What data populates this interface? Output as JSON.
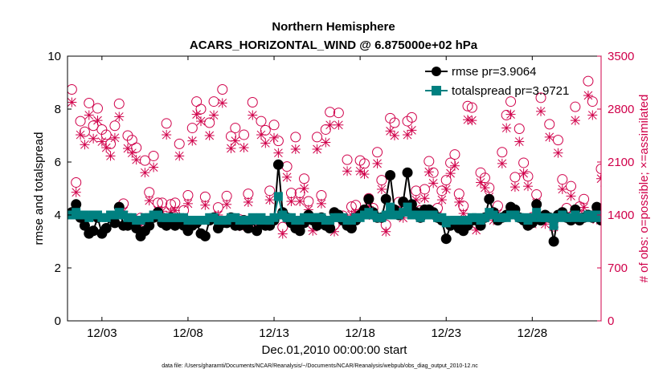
{
  "chart_data": {
    "type": "line",
    "title": "Northern Hemisphere",
    "subtitle": "ACARS_HORIZONTAL_WIND @ 6.875000e+02 hPa",
    "xlabel": "Dec.01,2010 00:00:00 start",
    "ylabel_left": "rmse and totalspread",
    "ylabel_right": "# of obs: o=possible; ×=assimilated",
    "footnote": "data file: /Users/gharamti/Documents/NCAR/Reanalysis/~/Documents/NCAR/Reanalysis/webpub/obs_diag_output_2010-12.nc",
    "xlim": [
      1.0,
      32.0
    ],
    "ylim_left": [
      0,
      10
    ],
    "ylim_right": [
      0,
      3500
    ],
    "x_ticks": [
      3,
      8,
      13,
      18,
      23,
      28
    ],
    "x_tick_labels": [
      "12/03",
      "12/08",
      "12/13",
      "12/18",
      "12/23",
      "12/28"
    ],
    "y_left_ticks": [
      0,
      2,
      4,
      6,
      8,
      10
    ],
    "y_left_tick_labels": [
      "0",
      "2",
      "4",
      "6",
      "8",
      "10"
    ],
    "y_right_ticks": [
      0,
      700,
      1400,
      2100,
      2800,
      3500
    ],
    "y_right_tick_labels": [
      "0",
      "700",
      "1400",
      "2100",
      "2800",
      "3500"
    ],
    "x_start": 1.25,
    "x_step": 0.25,
    "series": [
      {
        "name": "rmse pr=3.9064",
        "axis": "left",
        "color": "#000000",
        "marker": "circle",
        "values": [
          4.1,
          4.4,
          3.9,
          3.6,
          3.3,
          3.4,
          3.9,
          3.3,
          3.5,
          3.9,
          3.7,
          4.3,
          3.6,
          3.6,
          3.8,
          3.5,
          3.2,
          3.4,
          3.6,
          3.9,
          4.1,
          3.7,
          3.6,
          3.9,
          3.6,
          3.8,
          3.6,
          3.4,
          3.6,
          3.7,
          3.3,
          3.2,
          3.8,
          3.9,
          3.5,
          3.7,
          3.7,
          3.9,
          3.6,
          3.6,
          3.8,
          3.5,
          3.8,
          3.4,
          3.7,
          3.6,
          3.6,
          3.8,
          5.9,
          4.1,
          3.9,
          3.7,
          3.5,
          3.4,
          3.7,
          4.0,
          3.8,
          3.6,
          3.9,
          3.6,
          3.5,
          4.1,
          4.0,
          3.8,
          3.6,
          3.5,
          3.8,
          4.0,
          4.2,
          4.6,
          4.1,
          3.9,
          3.9,
          4.6,
          5.5,
          4.2,
          4.0,
          4.5,
          5.6,
          4.4,
          4.1,
          3.9,
          4.2,
          4.2,
          4.1,
          3.9,
          3.8,
          3.1,
          3.6,
          3.7,
          3.5,
          3.4,
          3.6,
          3.8,
          3.8,
          3.6,
          3.9,
          4.6,
          4.1,
          3.8,
          3.9,
          4.0,
          4.3,
          4.2,
          3.9,
          3.8,
          3.6,
          3.7,
          4.4,
          3.8,
          4.0,
          3.9,
          3.0,
          4.0,
          4.1,
          3.9,
          3.8,
          4.2,
          3.8,
          3.9,
          4.0,
          3.9,
          4.3,
          3.8
        ]
      },
      {
        "name": "totalspread pr=3.9721",
        "axis": "left",
        "color": "#008080",
        "marker": "square",
        "values": [
          4.0,
          4.1,
          4.0,
          4.0,
          3.9,
          4.0,
          4.0,
          3.9,
          3.9,
          4.0,
          4.0,
          4.1,
          4.0,
          3.9,
          3.9,
          3.8,
          3.8,
          3.9,
          3.9,
          4.0,
          4.0,
          3.9,
          3.9,
          3.9,
          3.9,
          3.9,
          3.9,
          3.8,
          3.8,
          3.8,
          3.8,
          3.8,
          3.9,
          3.9,
          3.8,
          3.8,
          3.8,
          3.9,
          3.9,
          3.8,
          3.8,
          3.8,
          3.9,
          3.8,
          3.9,
          3.8,
          3.8,
          3.9,
          4.7,
          4.0,
          3.9,
          3.9,
          3.8,
          3.8,
          3.9,
          3.9,
          3.9,
          3.9,
          3.9,
          3.8,
          3.8,
          3.9,
          3.9,
          3.9,
          3.8,
          3.8,
          3.9,
          3.9,
          4.0,
          4.1,
          4.0,
          3.9,
          3.9,
          4.0,
          4.3,
          4.0,
          4.0,
          4.1,
          4.3,
          4.0,
          4.0,
          3.9,
          4.0,
          4.0,
          4.0,
          3.9,
          3.9,
          3.7,
          3.8,
          3.8,
          3.8,
          3.8,
          3.8,
          3.9,
          3.9,
          3.8,
          3.9,
          4.1,
          4.0,
          3.9,
          3.9,
          3.9,
          4.0,
          4.0,
          3.9,
          3.9,
          3.8,
          3.9,
          4.1,
          3.9,
          3.9,
          3.9,
          3.6,
          3.9,
          4.0,
          3.9,
          3.9,
          4.0,
          3.9,
          3.9,
          4.0,
          3.9,
          4.0,
          3.9
        ]
      },
      {
        "name": "obs possible",
        "axis": "right",
        "color": "#d0004a",
        "marker": "circle-open",
        "values": [
          3060,
          1830,
          2640,
          2500,
          2880,
          2580,
          2810,
          2530,
          2460,
          2340,
          2580,
          2870,
          1550,
          2450,
          2390,
          2290,
          1360,
          2120,
          1700,
          2180,
          1560,
          1560,
          2610,
          1540,
          1560,
          2340,
          1460,
          1660,
          2550,
          2900,
          2800,
          1640,
          2620,
          2900,
          1500,
          3060,
          1650,
          2440,
          2550,
          1340,
          2460,
          1680,
          2890,
          1340,
          2640,
          2520,
          1720,
          2590,
          2380,
          1240,
          2040,
          1690,
          2430,
          1690,
          1880,
          1580,
          1280,
          2430,
          1660,
          2530,
          2760,
          1270,
          2750,
          1390,
          2130,
          1510,
          1530,
          2120,
          2080,
          1620,
          1490,
          2230,
          1860,
          1270,
          2680,
          2620,
          1570,
          1460,
          2640,
          2690,
          1720,
          1460,
          1740,
          2110,
          1960,
          1490,
          1720,
          1860,
          2090,
          2200,
          1680,
          1520,
          2840,
          2820,
          1290,
          1960,
          1890,
          1760,
          1430,
          1520,
          2230,
          2720,
          2900,
          1900,
          2540,
          2090,
          1910,
          1370,
          1670,
          2950,
          1370,
          2600,
          1330,
          2390,
          1870,
          1490,
          1780,
          2830,
          1510,
          1610,
          3170,
          2900,
          1440,
          2010,
          1910
        ]
      },
      {
        "name": "obs assimilated",
        "axis": "right",
        "color": "#d0004a",
        "marker": "x",
        "values": [
          2890,
          1700,
          2460,
          2330,
          2720,
          2410,
          2650,
          2370,
          2290,
          2180,
          2420,
          2700,
          1450,
          2280,
          2220,
          2130,
          1270,
          1960,
          1590,
          2030,
          1460,
          1450,
          2460,
          1440,
          1460,
          2180,
          1360,
          1550,
          2380,
          2730,
          2640,
          1530,
          2450,
          2720,
          1400,
          2880,
          1540,
          2280,
          2380,
          1250,
          2290,
          1570,
          2720,
          1250,
          2460,
          2350,
          1600,
          2420,
          2220,
          1150,
          1900,
          1580,
          2270,
          1580,
          1750,
          1470,
          1190,
          2270,
          1550,
          2360,
          2590,
          1180,
          2590,
          1300,
          1980,
          1400,
          1430,
          1980,
          1940,
          1510,
          1390,
          2080,
          1740,
          1180,
          2510,
          2450,
          1460,
          1360,
          2460,
          2520,
          1600,
          1360,
          1620,
          1970,
          1820,
          1390,
          1600,
          1740,
          1950,
          2050,
          1570,
          1420,
          2660,
          2650,
          1200,
          1830,
          1760,
          1640,
          1330,
          1420,
          2080,
          2550,
          2730,
          1770,
          2370,
          1950,
          1780,
          1280,
          1560,
          2770,
          1280,
          2430,
          1240,
          2220,
          1740,
          1390,
          1650,
          2650,
          1410,
          1500,
          2980,
          2720,
          1340,
          1880,
          1780
        ]
      }
    ],
    "grid": false,
    "legend": "top-right"
  },
  "colors": {
    "axis": "#000000",
    "right_axis": "#d0004a",
    "teal": "#008080",
    "black": "#000000"
  }
}
